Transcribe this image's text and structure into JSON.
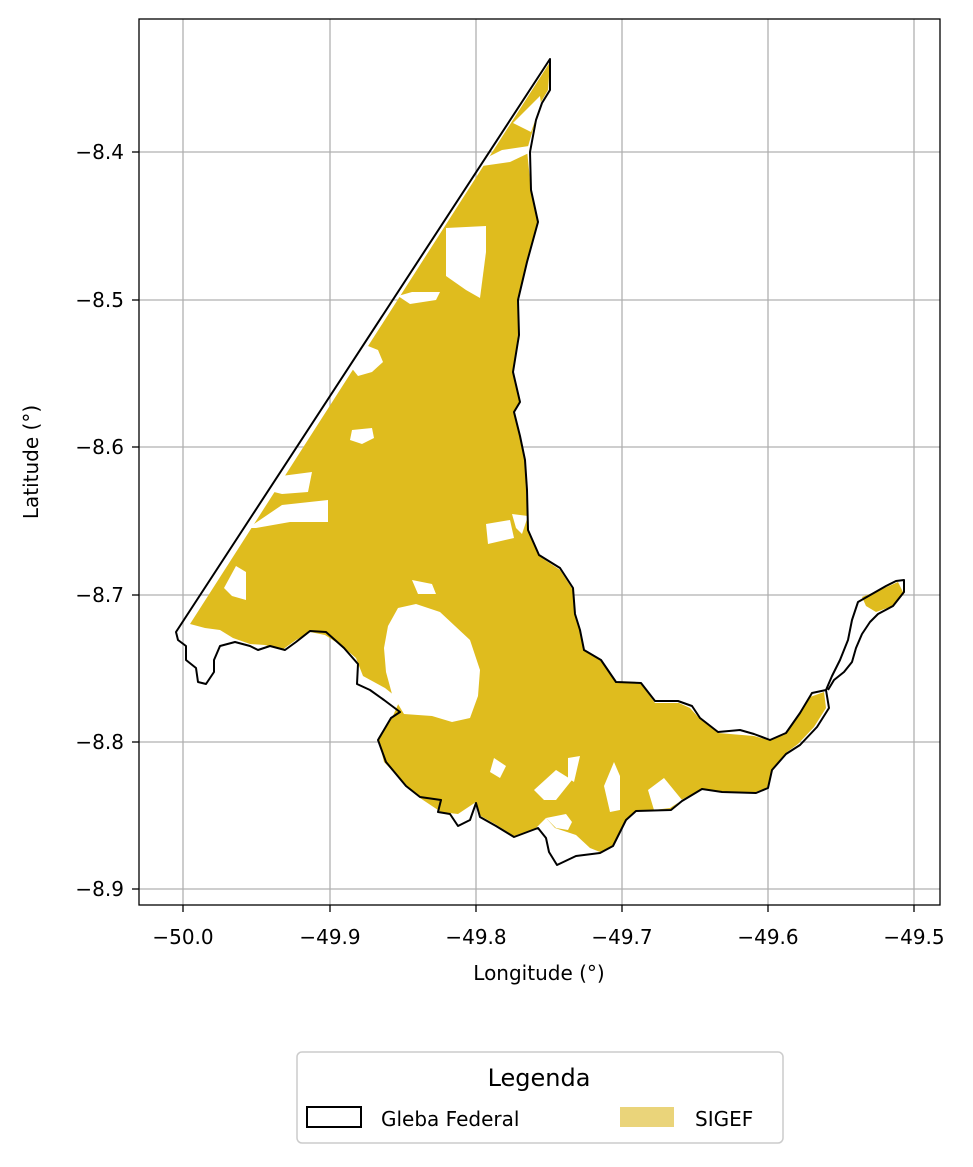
{
  "map": {
    "xlabel": "Longitude (°)",
    "ylabel": "Latitude (°)",
    "x_ticks": [
      "−50.0",
      "−49.9",
      "−49.8",
      "−49.7",
      "−49.6",
      "−49.5"
    ],
    "y_ticks": [
      "−8.4",
      "−8.5",
      "−8.6",
      "−8.7",
      "−8.8",
      "−8.9"
    ],
    "grid": true
  },
  "legend": {
    "title": "Legenda",
    "items": [
      {
        "label": "Gleba Federal",
        "kind": "outline"
      },
      {
        "label": "SIGEF",
        "kind": "fill"
      }
    ]
  },
  "colors": {
    "sigef_fill": "#dfbc1e",
    "legend_sigef_patch": "#ead47a",
    "boundary": "#000000",
    "grid": "#b0b0b0"
  }
}
